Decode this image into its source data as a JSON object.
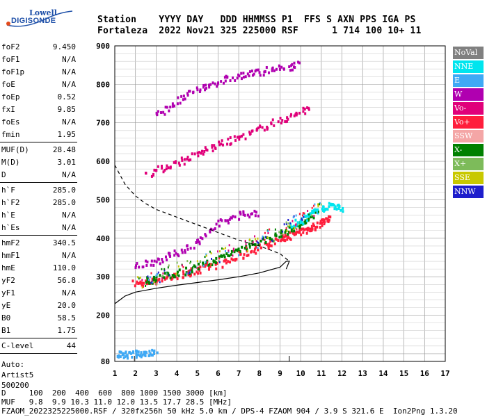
{
  "logo": {
    "line1": "Lowell",
    "line2": "DIGISONDE"
  },
  "header": {
    "line1": "Station    YYYY DAY   DDD HHMMSS P1  FFS S AXN PPS IGA PS",
    "line2": "Fortaleza  2022 Nov21 325 225000 RSF      1 714 100 10+ 11"
  },
  "params": {
    "group1": [
      {
        "k": "foF2",
        "v": "9.450"
      },
      {
        "k": "foF1",
        "v": "N/A"
      },
      {
        "k": "foF1p",
        "v": "N/A"
      },
      {
        "k": "foE",
        "v": "N/A"
      },
      {
        "k": "foEp",
        "v": "0.52"
      },
      {
        "k": "fxI",
        "v": "9.85"
      },
      {
        "k": "foEs",
        "v": "N/A"
      },
      {
        "k": "fmin",
        "v": "1.95"
      }
    ],
    "group2": [
      {
        "k": "MUF(D)",
        "v": "28.48"
      },
      {
        "k": "M(D)",
        "v": "3.01"
      },
      {
        "k": "D",
        "v": "N/A"
      }
    ],
    "group3": [
      {
        "k": "h`F",
        "v": "285.0"
      },
      {
        "k": "h`F2",
        "v": "285.0"
      },
      {
        "k": "h`E",
        "v": "N/A"
      },
      {
        "k": "h`Es",
        "v": "N/A"
      }
    ],
    "group4": [
      {
        "k": "hmF2",
        "v": "340.5"
      },
      {
        "k": "hmF1",
        "v": "N/A"
      },
      {
        "k": "hmE",
        "v": "110.0"
      },
      {
        "k": "yF2",
        "v": "56.8"
      },
      {
        "k": "yF1",
        "v": "N/A"
      },
      {
        "k": "yE",
        "v": "20.0"
      },
      {
        "k": "B0",
        "v": "58.5"
      },
      {
        "k": "B1",
        "v": "1.75"
      }
    ],
    "group5": [
      {
        "k": "C-level",
        "v": "44"
      }
    ],
    "auto": [
      "Auto:",
      "Artist5",
      "500200"
    ]
  },
  "legend": [
    {
      "label": "NoVal",
      "color": "#808080"
    },
    {
      "label": "NNE",
      "color": "#00e5ee"
    },
    {
      "label": "E",
      "color": "#3fa9f5"
    },
    {
      "label": "W",
      "color": "#b000b0"
    },
    {
      "label": "Vo-",
      "color": "#e0007a"
    },
    {
      "label": "Vo+",
      "color": "#ff1e3c"
    },
    {
      "label": "SSW",
      "color": "#f4a6a6"
    },
    {
      "label": "X-",
      "color": "#008000"
    },
    {
      "label": "X+",
      "color": "#7dbb5a"
    },
    {
      "label": "SSE",
      "color": "#c8c800"
    },
    {
      "label": "NNW",
      "color": "#1e1ecc"
    }
  ],
  "bottom": {
    "line1": "D     100  200  400  600  800 1000 1500 3000 [km]",
    "line2": "MUF   9.8  9.9 10.3 11.0 12.0 13.5 17.7 28.5 [MHz]",
    "line3": "FZAOM_2022325225000.RSF / 320fx256h 50 kHz 5.0 km / DPS-4 FZAOM 904 / 3.9 S 321.6 E  Ion2Png 1.3.20"
  },
  "chart_data": {
    "type": "scatter",
    "xlim": [
      1,
      17
    ],
    "ylim": [
      80,
      900
    ],
    "xticks": [
      1,
      2,
      3,
      4,
      5,
      6,
      7,
      8,
      9,
      10,
      11,
      12,
      13,
      14,
      15,
      16,
      17
    ],
    "yticks": [
      80,
      200,
      300,
      400,
      500,
      600,
      700,
      800,
      900
    ],
    "grid": true,
    "legend_position": "right",
    "traces": [
      {
        "name": "F2 O-trace (1st hop)",
        "color": "#ff1e3c",
        "x": [
          1.95,
          2.5,
          3,
          4,
          5,
          6,
          7,
          8,
          9,
          9.45,
          10,
          10.5,
          11,
          11.3
        ],
        "y": [
          285,
          288,
          295,
          305,
          318,
          335,
          355,
          380,
          400,
          410,
          420,
          430,
          445,
          460
        ]
      },
      {
        "name": "F2 X-trace",
        "color": "#008000",
        "x": [
          2.4,
          3,
          4,
          5,
          6,
          7,
          8,
          9,
          10,
          10.5
        ],
        "y": [
          290,
          300,
          312,
          328,
          350,
          375,
          395,
          415,
          440,
          455
        ]
      },
      {
        "name": "W echoes",
        "color": "#b000b0",
        "x": [
          2,
          3,
          4,
          5,
          6,
          7,
          8
        ],
        "y": [
          330,
          345,
          365,
          395,
          440,
          465,
          470
        ]
      },
      {
        "name": "NNE echoes",
        "color": "#00e5ee",
        "x": [
          9.5,
          10,
          10.5,
          11,
          11.5,
          12
        ],
        "y": [
          430,
          450,
          470,
          480,
          490,
          480
        ]
      },
      {
        "name": "2nd hop",
        "color": "#e0007a",
        "x": [
          2.5,
          3.5,
          4.5,
          5.5,
          6.5,
          7.5,
          8.5,
          9.5,
          10.5
        ],
        "y": [
          570,
          590,
          610,
          635,
          655,
          675,
          700,
          720,
          745
        ]
      },
      {
        "name": "3rd hop",
        "color": "#b000b0",
        "x": [
          3,
          4,
          5,
          6,
          7,
          8,
          9,
          10
        ],
        "y": [
          720,
          760,
          790,
          810,
          825,
          835,
          845,
          855
        ]
      },
      {
        "name": "E-region",
        "color": "#3fa9f5",
        "x": [
          1.1,
          1.5,
          2,
          2.5,
          3
        ],
        "y": [
          100,
          100,
          102,
          105,
          105
        ]
      }
    ],
    "profile_solid": {
      "x": [
        1,
        1.5,
        2,
        3,
        4,
        5,
        6,
        7,
        8,
        9,
        9.3,
        9.45,
        9.3
      ],
      "y": [
        230,
        250,
        260,
        270,
        278,
        285,
        292,
        300,
        310,
        325,
        340,
        340.5,
        320
      ]
    },
    "profile_dashed": {
      "x": [
        1,
        1.5,
        2,
        2.5,
        3,
        4,
        5,
        6,
        7,
        8,
        9,
        9.45
      ],
      "y": [
        590,
        540,
        510,
        490,
        475,
        455,
        435,
        415,
        395,
        380,
        360,
        340
      ]
    },
    "markers": [
      {
        "x": 1.95,
        "label": "fmin"
      },
      {
        "x": 9.45,
        "label": "foF2"
      }
    ]
  }
}
